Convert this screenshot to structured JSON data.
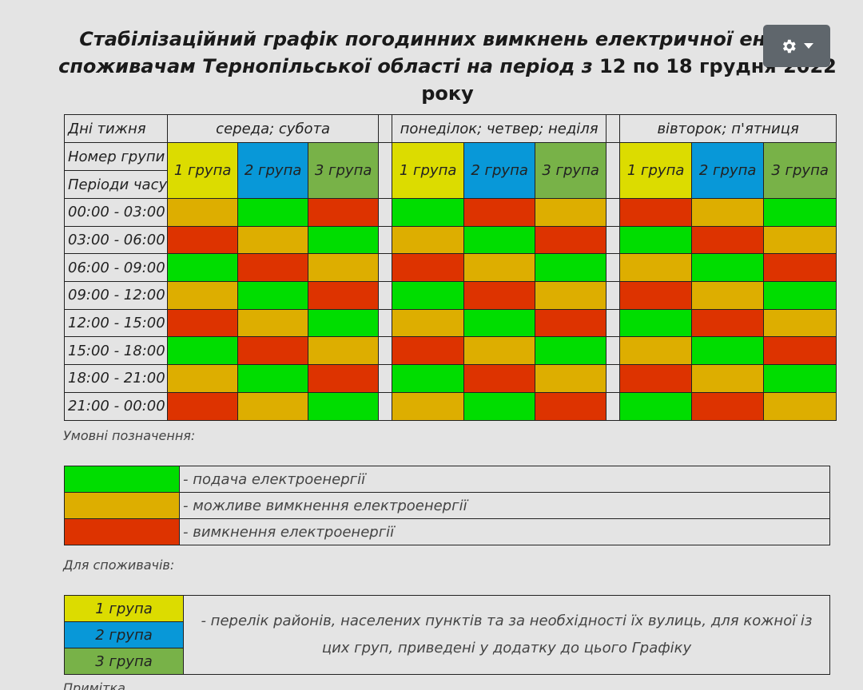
{
  "title": {
    "part1": "Стабілізаційний графік погодинних вимкнень електричної енергії споживачам Тернопільської області на період з ",
    "period": "12 по 18 грудня 2022 року"
  },
  "settings": {
    "icon": "gear-icon"
  },
  "schedule": {
    "days_label": "Дні тижня",
    "group_no_label": "Номер групи",
    "periods_label": "Періоди часу",
    "day_groups": [
      "середа; субота",
      "понеділок; четвер; неділя",
      "вівторок; п'ятниця"
    ],
    "group_labels": [
      "1 група",
      "2 група",
      "3 група"
    ],
    "times": [
      "00:00 - 03:00",
      "03:00 - 06:00",
      "06:00 - 09:00",
      "09:00 - 12:00",
      "12:00 - 15:00",
      "15:00 - 18:00",
      "18:00 - 21:00",
      "21:00 - 00:00"
    ],
    "status_colors": {
      "on": "#00dd00",
      "maybe": "#ddae00",
      "off": "#dd3300"
    },
    "group_colors": [
      "#dcdc00",
      "#0898d8",
      "#78b248"
    ],
    "rows": [
      [
        [
          "maybe",
          "on",
          "off"
        ],
        [
          "on",
          "off",
          "maybe"
        ],
        [
          "off",
          "maybe",
          "on"
        ]
      ],
      [
        [
          "off",
          "maybe",
          "on"
        ],
        [
          "maybe",
          "on",
          "off"
        ],
        [
          "on",
          "off",
          "maybe"
        ]
      ],
      [
        [
          "on",
          "off",
          "maybe"
        ],
        [
          "off",
          "maybe",
          "on"
        ],
        [
          "maybe",
          "on",
          "off"
        ]
      ],
      [
        [
          "maybe",
          "on",
          "off"
        ],
        [
          "on",
          "off",
          "maybe"
        ],
        [
          "off",
          "maybe",
          "on"
        ]
      ],
      [
        [
          "off",
          "maybe",
          "on"
        ],
        [
          "maybe",
          "on",
          "off"
        ],
        [
          "on",
          "off",
          "maybe"
        ]
      ],
      [
        [
          "on",
          "off",
          "maybe"
        ],
        [
          "off",
          "maybe",
          "on"
        ],
        [
          "maybe",
          "on",
          "off"
        ]
      ],
      [
        [
          "maybe",
          "on",
          "off"
        ],
        [
          "on",
          "off",
          "maybe"
        ],
        [
          "off",
          "maybe",
          "on"
        ]
      ],
      [
        [
          "off",
          "maybe",
          "on"
        ],
        [
          "maybe",
          "on",
          "off"
        ],
        [
          "on",
          "off",
          "maybe"
        ]
      ]
    ]
  },
  "legend": {
    "heading": "Умовні позначення:",
    "items": [
      {
        "status": "on",
        "text": "- подача електроенергії"
      },
      {
        "status": "maybe",
        "text": "- можливе вимкнення електроенергії"
      },
      {
        "status": "off",
        "text": "- вимкнення електроенергії"
      }
    ]
  },
  "consumers": {
    "heading": "Для споживачів:",
    "groups": [
      "1 група",
      "2 група",
      "3 група"
    ],
    "description": "- перелік районів, населених пунктів та за необхідності їх вулиць, для кожної із цих груп, приведені у додатку до цього Графіку"
  },
  "cutoff_text": "Примітка"
}
